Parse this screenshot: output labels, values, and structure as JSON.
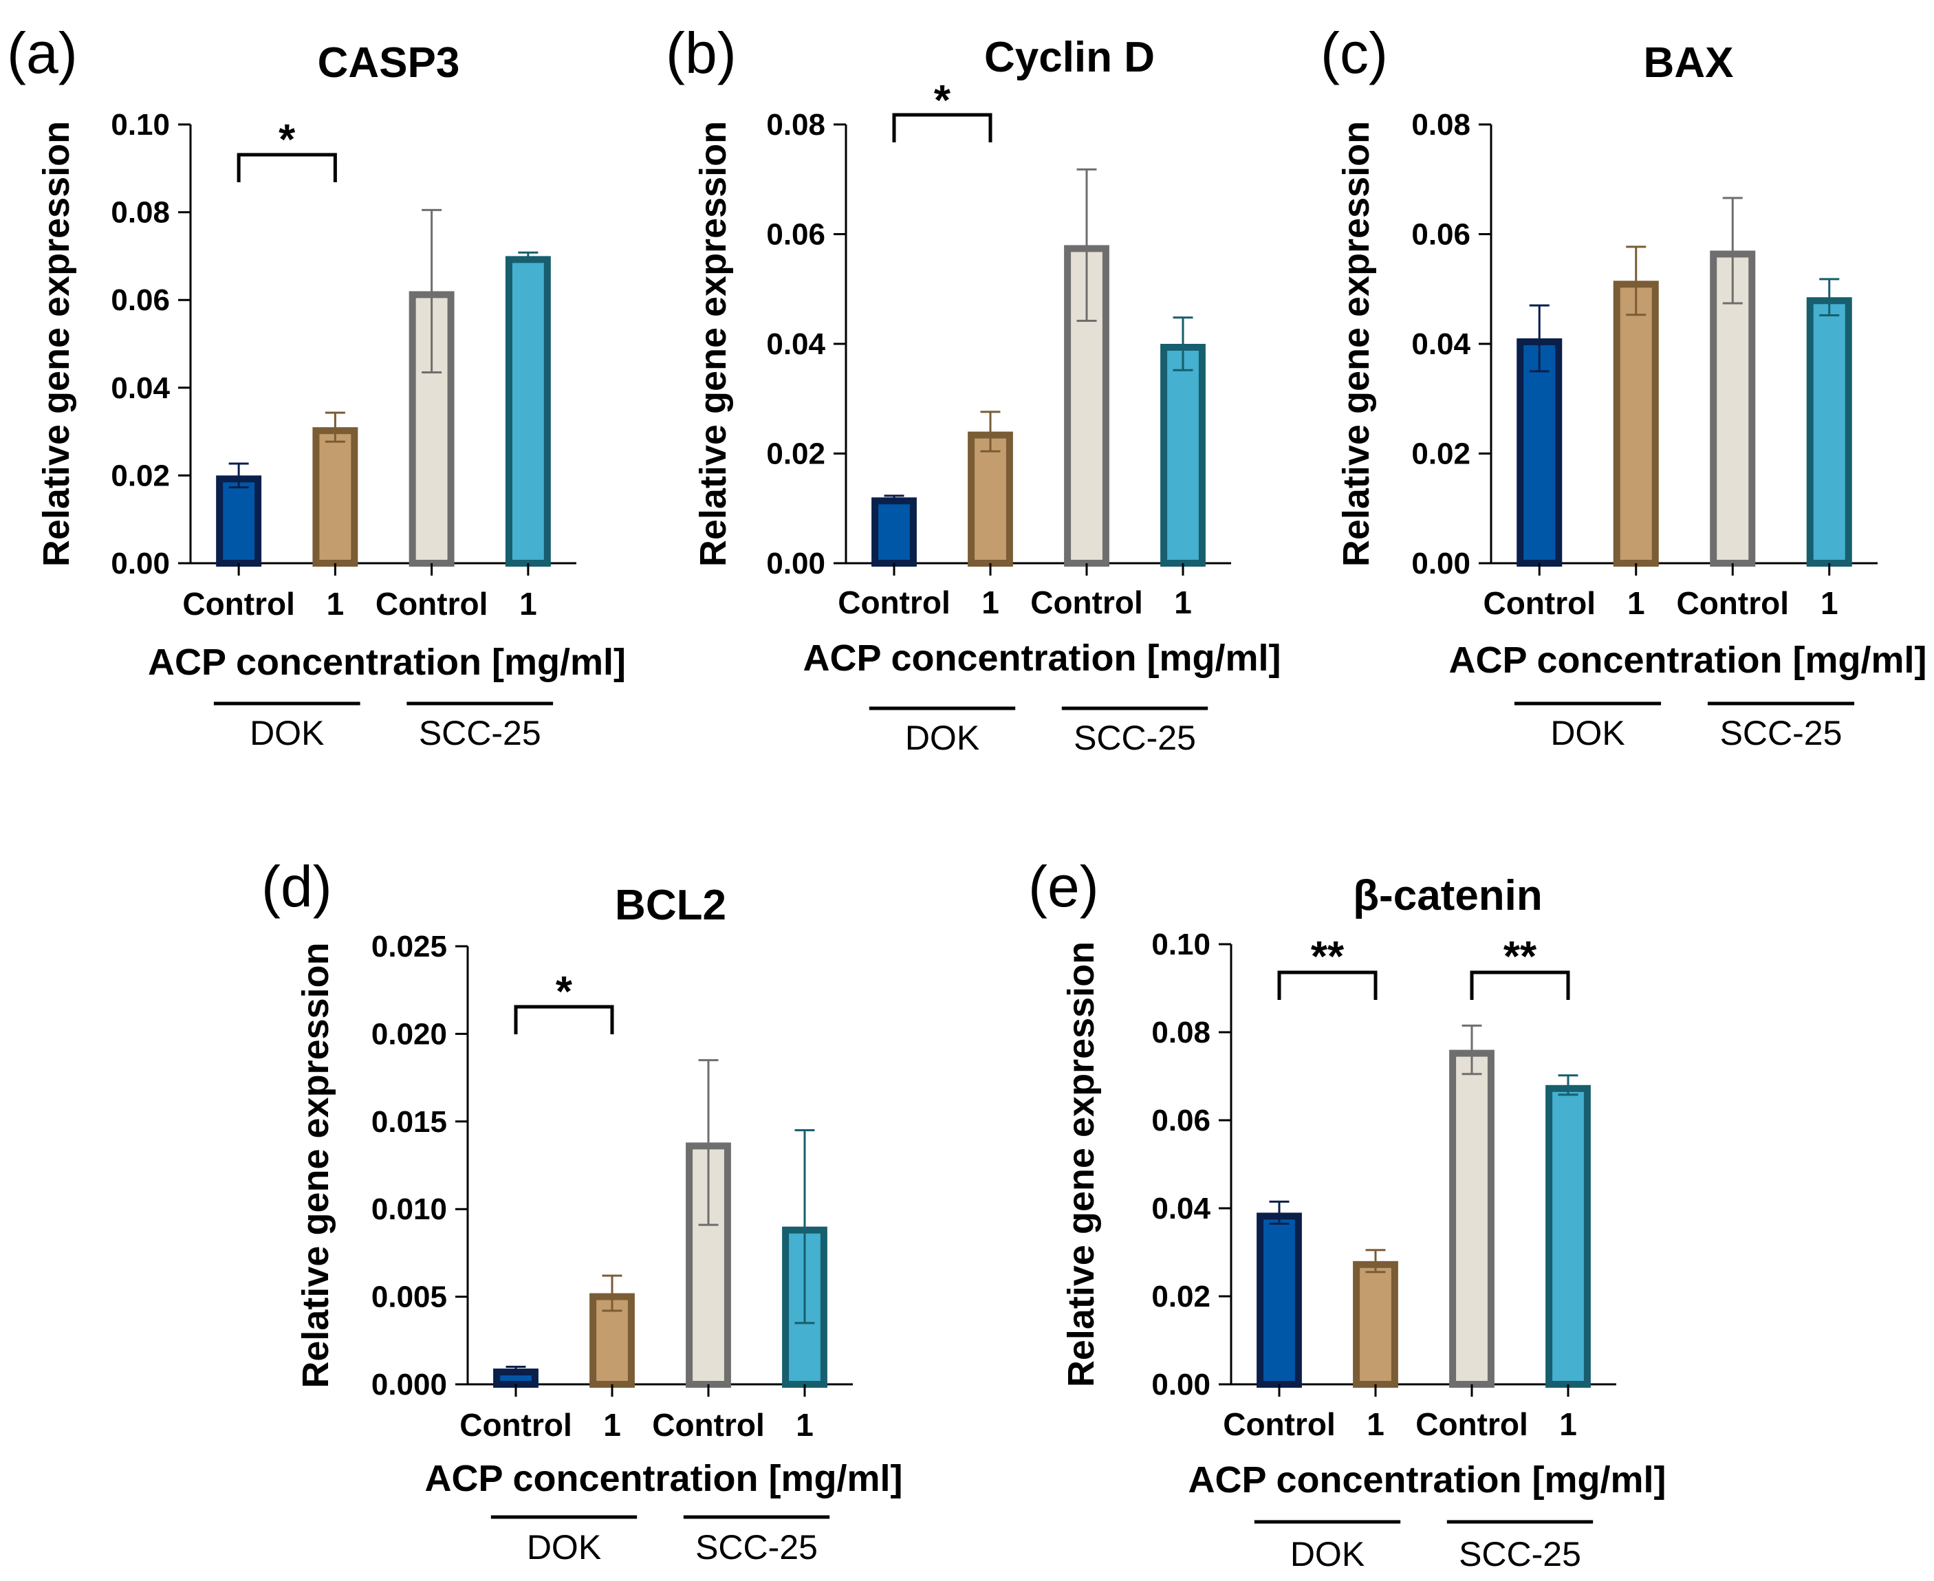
{
  "figure": {
    "xlabel": "ACP concentration [mg/ml]",
    "ylabel": "Relative gene expression",
    "categories": [
      "Control",
      "1",
      "Control",
      "1"
    ],
    "groups": [
      "DOK",
      "SCC-25"
    ],
    "colors": {
      "fill": [
        "#0057a8",
        "#c49d6e",
        "#e4e0d5",
        "#45b0cf"
      ],
      "edge": [
        "#0a1f4a",
        "#7a5c35",
        "#6e6e6e",
        "#175e6e"
      ],
      "axis": "#000000"
    }
  },
  "chart_data": [
    {
      "panel": "(a)",
      "type": "bar",
      "title": "CASP3",
      "xlabel": "ACP concentration [mg/ml]",
      "ylabel": "Relative gene expression",
      "categories": [
        "Control",
        "1",
        "Control",
        "1"
      ],
      "groups": [
        "DOK",
        "SCC-25"
      ],
      "values": [
        0.02,
        0.031,
        0.062,
        0.07
      ],
      "errors": [
        0.0027,
        0.0033,
        0.0185,
        0.0008
      ],
      "ylim": [
        0,
        0.1
      ],
      "yticks": [
        "0.00",
        "0.02",
        "0.04",
        "0.06",
        "0.08",
        "0.10"
      ],
      "significance": [
        {
          "from": 0,
          "to": 1,
          "label": "*"
        }
      ]
    },
    {
      "panel": "(b)",
      "type": "bar",
      "title": "Cyclin D",
      "xlabel": "ACP concentration [mg/ml]",
      "ylabel": "Relative gene expression",
      "categories": [
        "Control",
        "1",
        "Control",
        "1"
      ],
      "groups": [
        "DOK",
        "SCC-25"
      ],
      "values": [
        0.012,
        0.024,
        0.058,
        0.04
      ],
      "errors": [
        0.0003,
        0.0036,
        0.0138,
        0.0048
      ],
      "ylim": [
        0,
        0.08
      ],
      "yticks": [
        "0.00",
        "0.02",
        "0.04",
        "0.06",
        "0.08"
      ],
      "significance": [
        {
          "from": 0,
          "to": 1,
          "label": "*"
        }
      ]
    },
    {
      "panel": "(c)",
      "type": "bar",
      "title": "BAX",
      "xlabel": "ACP concentration [mg/ml]",
      "ylabel": "Relative gene expression",
      "categories": [
        "Control",
        "1",
        "Control",
        "1"
      ],
      "groups": [
        "DOK",
        "SCC-25"
      ],
      "values": [
        0.041,
        0.0515,
        0.057,
        0.0485
      ],
      "errors": [
        0.006,
        0.0062,
        0.0096,
        0.0033
      ],
      "ylim": [
        0,
        0.08
      ],
      "yticks": [
        "0.00",
        "0.02",
        "0.04",
        "0.06",
        "0.08"
      ],
      "significance": []
    },
    {
      "panel": "(d)",
      "type": "bar",
      "title": "BCL2",
      "xlabel": "ACP concentration [mg/ml]",
      "ylabel": "Relative gene expression",
      "categories": [
        "Control",
        "1",
        "Control",
        "1"
      ],
      "groups": [
        "DOK",
        "SCC-25"
      ],
      "values": [
        0.0009,
        0.0052,
        0.0138,
        0.009
      ],
      "errors": [
        0.0001,
        0.001,
        0.0047,
        0.0055
      ],
      "ylim": [
        0,
        0.025
      ],
      "yticks": [
        "0.000",
        "0.005",
        "0.010",
        "0.015",
        "0.020",
        "0.025"
      ],
      "significance": [
        {
          "from": 0,
          "to": 1,
          "label": "*"
        }
      ]
    },
    {
      "panel": "(e)",
      "type": "bar",
      "title": "β-catenin",
      "xlabel": "ACP concentration [mg/ml]",
      "ylabel": "Relative gene expression",
      "categories": [
        "Control",
        "1",
        "Control",
        "1"
      ],
      "groups": [
        "DOK",
        "SCC-25"
      ],
      "values": [
        0.039,
        0.028,
        0.076,
        0.068
      ],
      "errors": [
        0.0025,
        0.0025,
        0.0055,
        0.0022
      ],
      "ylim": [
        0,
        0.1
      ],
      "yticks": [
        "0.00",
        "0.02",
        "0.04",
        "0.06",
        "0.08",
        "0.10"
      ],
      "significance": [
        {
          "from": 0,
          "to": 1,
          "label": "**"
        },
        {
          "from": 2,
          "to": 3,
          "label": "**"
        }
      ]
    }
  ]
}
